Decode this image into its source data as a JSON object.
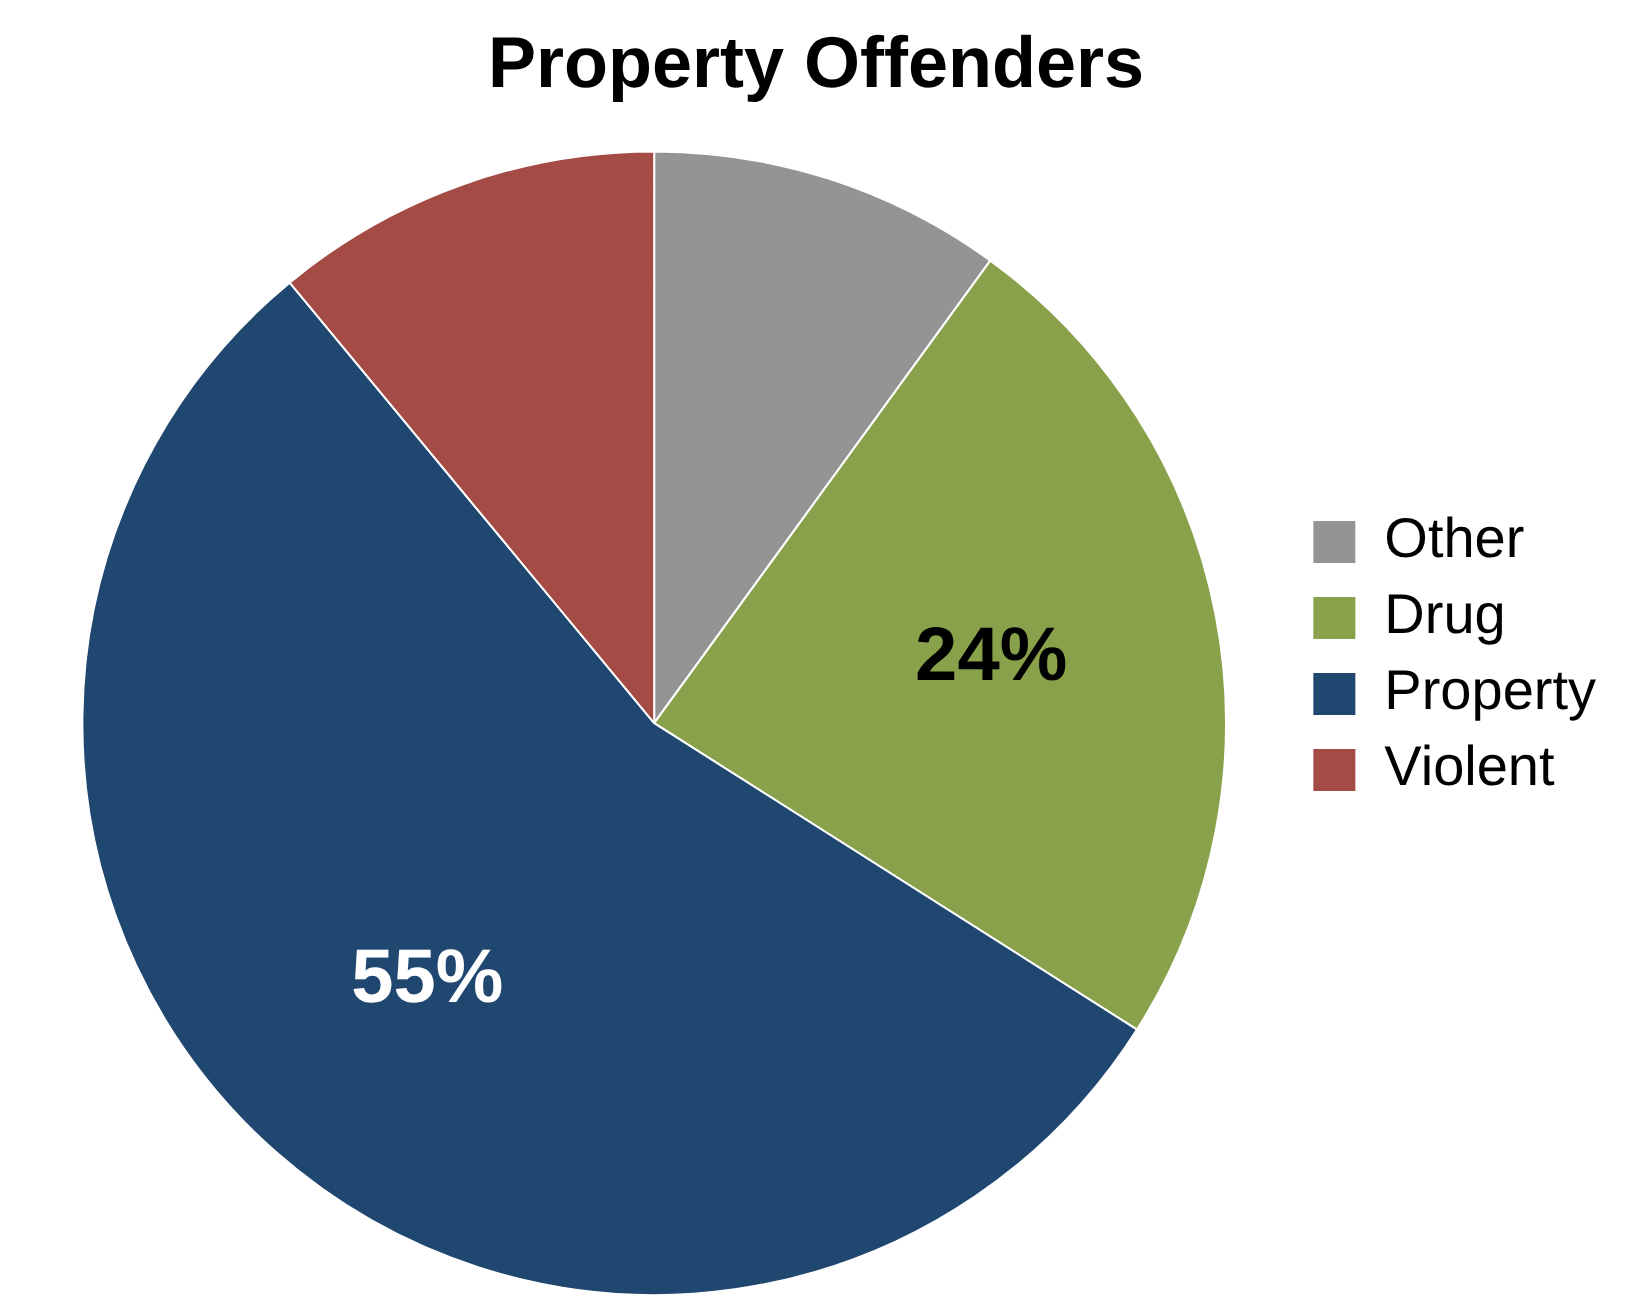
{
  "chart_data": {
    "type": "pie",
    "title": "Property Offenders",
    "categories": [
      "Other",
      "Drug",
      "Property",
      "Violent"
    ],
    "values": [
      10,
      24,
      55,
      11
    ],
    "colors": [
      "#949494",
      "#89a14b",
      "#1f4770",
      "#a34b44"
    ],
    "value_labels": [
      null,
      "24%",
      "55%",
      null
    ],
    "legend": "right"
  }
}
